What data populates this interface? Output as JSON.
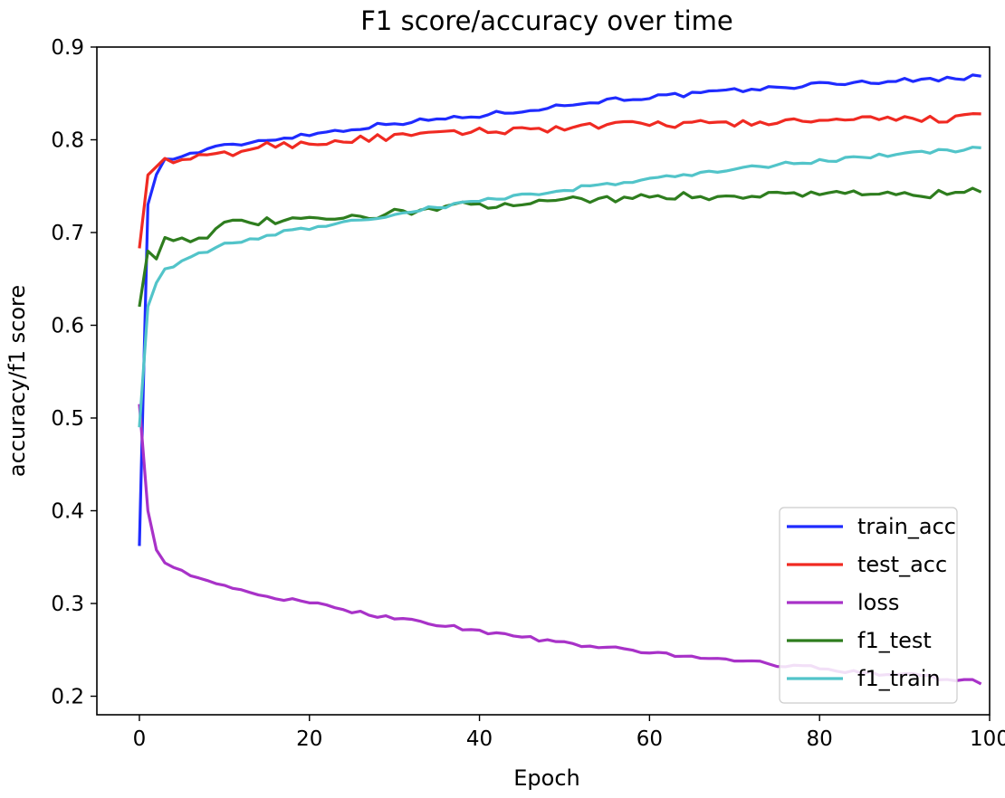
{
  "chart_data": {
    "type": "line",
    "title": "F1 score/accuracy over time",
    "xlabel": "Epoch",
    "ylabel": "accuracy/f1 score",
    "xlim": [
      -5,
      100
    ],
    "ylim": [
      0.18,
      0.9
    ],
    "xticks": [
      0,
      20,
      40,
      60,
      80,
      100
    ],
    "yticks": [
      0.2,
      0.3,
      0.4,
      0.5,
      0.6,
      0.7,
      0.8,
      0.9
    ],
    "xtick_labels": [
      "0",
      "20",
      "40",
      "60",
      "80",
      "100"
    ],
    "ytick_labels": [
      "0.2",
      "0.3",
      "0.4",
      "0.5",
      "0.6",
      "0.7",
      "0.8",
      "0.9"
    ],
    "grid": false,
    "legend_position": "lower-right",
    "series": [
      {
        "name": "train_acc",
        "color": "#1f2bff",
        "keypoints": [
          [
            0,
            0.362
          ],
          [
            1,
            0.73
          ],
          [
            2,
            0.765
          ],
          [
            3,
            0.778
          ],
          [
            5,
            0.782
          ],
          [
            8,
            0.79
          ],
          [
            10,
            0.793
          ],
          [
            15,
            0.8
          ],
          [
            20,
            0.806
          ],
          [
            25,
            0.812
          ],
          [
            30,
            0.818
          ],
          [
            35,
            0.822
          ],
          [
            40,
            0.826
          ],
          [
            45,
            0.832
          ],
          [
            50,
            0.837
          ],
          [
            55,
            0.843
          ],
          [
            60,
            0.846
          ],
          [
            65,
            0.849
          ],
          [
            70,
            0.853
          ],
          [
            75,
            0.856
          ],
          [
            80,
            0.86
          ],
          [
            85,
            0.862
          ],
          [
            90,
            0.864
          ],
          [
            95,
            0.866
          ],
          [
            99,
            0.868
          ]
        ]
      },
      {
        "name": "test_acc",
        "color": "#f02a22",
        "keypoints": [
          [
            0,
            0.683
          ],
          [
            1,
            0.762
          ],
          [
            2,
            0.775
          ],
          [
            3,
            0.776
          ],
          [
            5,
            0.778
          ],
          [
            8,
            0.782
          ],
          [
            10,
            0.784
          ],
          [
            15,
            0.794
          ],
          [
            20,
            0.796
          ],
          [
            25,
            0.8
          ],
          [
            30,
            0.803
          ],
          [
            35,
            0.806
          ],
          [
            40,
            0.809
          ],
          [
            45,
            0.811
          ],
          [
            50,
            0.813
          ],
          [
            55,
            0.815
          ],
          [
            60,
            0.817
          ],
          [
            65,
            0.817
          ],
          [
            70,
            0.818
          ],
          [
            75,
            0.819
          ],
          [
            80,
            0.82
          ],
          [
            85,
            0.821
          ],
          [
            90,
            0.822
          ],
          [
            95,
            0.823
          ],
          [
            99,
            0.825
          ]
        ]
      },
      {
        "name": "loss",
        "color": "#a832c8",
        "keypoints": [
          [
            0,
            0.515
          ],
          [
            1,
            0.4
          ],
          [
            2,
            0.36
          ],
          [
            3,
            0.345
          ],
          [
            5,
            0.335
          ],
          [
            8,
            0.323
          ],
          [
            10,
            0.318
          ],
          [
            15,
            0.308
          ],
          [
            20,
            0.3
          ],
          [
            25,
            0.292
          ],
          [
            30,
            0.284
          ],
          [
            35,
            0.278
          ],
          [
            40,
            0.27
          ],
          [
            45,
            0.264
          ],
          [
            50,
            0.257
          ],
          [
            55,
            0.252
          ],
          [
            60,
            0.247
          ],
          [
            65,
            0.243
          ],
          [
            70,
            0.239
          ],
          [
            75,
            0.234
          ],
          [
            80,
            0.23
          ],
          [
            85,
            0.226
          ],
          [
            90,
            0.223
          ],
          [
            95,
            0.219
          ],
          [
            99,
            0.215
          ]
        ]
      },
      {
        "name": "f1_test",
        "color": "#2e7d1e",
        "keypoints": [
          [
            0,
            0.62
          ],
          [
            1,
            0.68
          ],
          [
            2,
            0.676
          ],
          [
            3,
            0.695
          ],
          [
            5,
            0.692
          ],
          [
            8,
            0.698
          ],
          [
            10,
            0.708
          ],
          [
            15,
            0.712
          ],
          [
            20,
            0.713
          ],
          [
            25,
            0.715
          ],
          [
            30,
            0.722
          ],
          [
            35,
            0.726
          ],
          [
            40,
            0.73
          ],
          [
            45,
            0.733
          ],
          [
            50,
            0.735
          ],
          [
            55,
            0.737
          ],
          [
            60,
            0.738
          ],
          [
            65,
            0.739
          ],
          [
            70,
            0.74
          ],
          [
            75,
            0.741
          ],
          [
            80,
            0.744
          ],
          [
            85,
            0.742
          ],
          [
            90,
            0.741
          ],
          [
            95,
            0.741
          ],
          [
            99,
            0.745
          ]
        ]
      },
      {
        "name": "f1_train",
        "color": "#52c4c9",
        "keypoints": [
          [
            0,
            0.49
          ],
          [
            1,
            0.62
          ],
          [
            2,
            0.648
          ],
          [
            3,
            0.66
          ],
          [
            5,
            0.668
          ],
          [
            8,
            0.68
          ],
          [
            10,
            0.687
          ],
          [
            15,
            0.697
          ],
          [
            20,
            0.705
          ],
          [
            25,
            0.712
          ],
          [
            30,
            0.72
          ],
          [
            35,
            0.727
          ],
          [
            40,
            0.734
          ],
          [
            45,
            0.74
          ],
          [
            50,
            0.746
          ],
          [
            55,
            0.752
          ],
          [
            60,
            0.758
          ],
          [
            65,
            0.763
          ],
          [
            70,
            0.768
          ],
          [
            75,
            0.773
          ],
          [
            80,
            0.777
          ],
          [
            85,
            0.781
          ],
          [
            90,
            0.785
          ],
          [
            95,
            0.788
          ],
          [
            99,
            0.791
          ]
        ]
      }
    ]
  }
}
